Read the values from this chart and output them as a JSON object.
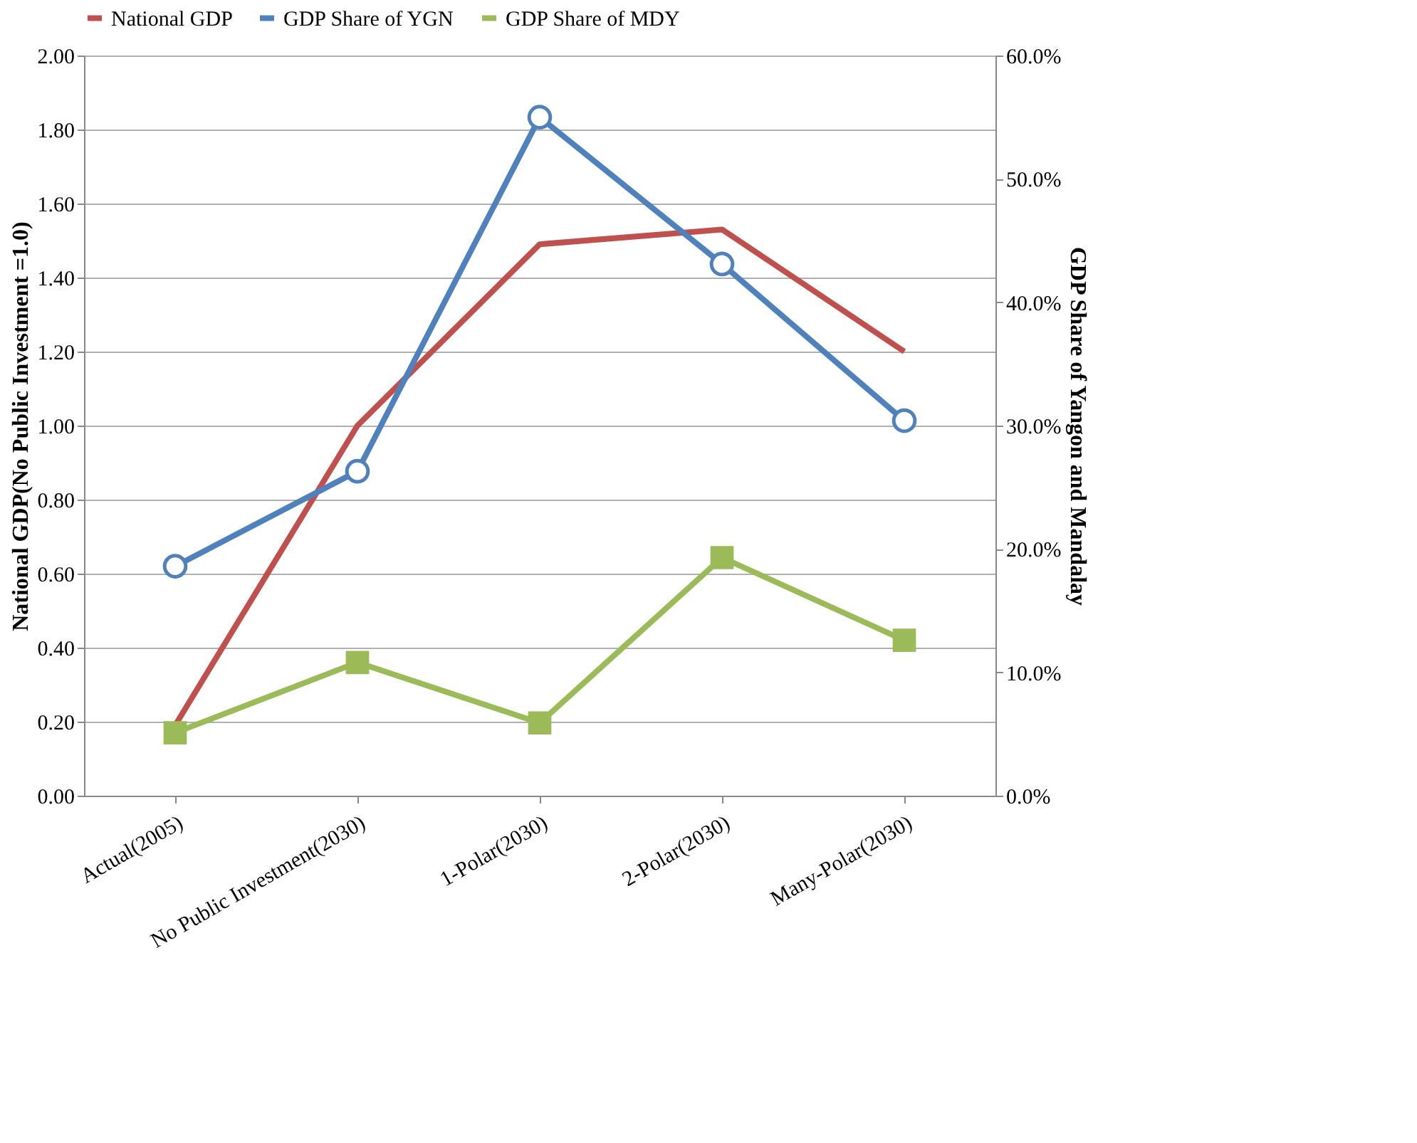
{
  "chart_data": {
    "type": "line",
    "categories": [
      "Actual(2005)",
      "No Public Investment(2030)",
      "1-Polar(2030)",
      "2-Polar(2030)",
      "Many-Polar(2030)"
    ],
    "ylabel": "National GDP(No Public Investment =1.0)",
    "y2label": "GDP Share of Yangon and Mandalay",
    "ylim": [
      0,
      2
    ],
    "yticks": [
      {
        "value": 0,
        "label": "0.00"
      },
      {
        "value": 0.2,
        "label": "0.20"
      },
      {
        "value": 0.4,
        "label": "0.40"
      },
      {
        "value": 0.6,
        "label": "0.60"
      },
      {
        "value": 0.8,
        "label": "0.80"
      },
      {
        "value": 1,
        "label": "1.00"
      },
      {
        "value": 1.2,
        "label": "1.20"
      },
      {
        "value": 1.4,
        "label": "1.40"
      },
      {
        "value": 1.6,
        "label": "1.60"
      },
      {
        "value": 1.8,
        "label": "1.80"
      },
      {
        "value": 2,
        "label": "2.00"
      }
    ],
    "y2lim": [
      0,
      60
    ],
    "y2ticks": [
      {
        "value": 0,
        "label": "0.0%"
      },
      {
        "value": 10,
        "label": "10.0%"
      },
      {
        "value": 20,
        "label": "20.0%"
      },
      {
        "value": 30,
        "label": "30.0%"
      },
      {
        "value": 40,
        "label": "40.0%"
      },
      {
        "value": 50,
        "label": "50.0%"
      },
      {
        "value": 60,
        "label": "60.0%"
      }
    ],
    "grid": "y",
    "legend": "top",
    "series": [
      {
        "name": "National GDP",
        "color": "#c0504d",
        "marker": "none",
        "values": [
          0.19,
          1.0,
          1.49,
          1.53,
          1.2
        ]
      },
      {
        "name": "GDP Share of YGN",
        "color": "#4f81bd",
        "marker": "circle",
        "axis": "y2",
        "values": [
          18.6,
          26.3,
          55.0,
          43.1,
          30.4
        ]
      },
      {
        "name": "GDP Share of MDY",
        "color": "#9bbb59",
        "marker": "square",
        "axis": "y2",
        "values": [
          5.1,
          10.8,
          5.9,
          19.3,
          12.6
        ]
      }
    ]
  }
}
